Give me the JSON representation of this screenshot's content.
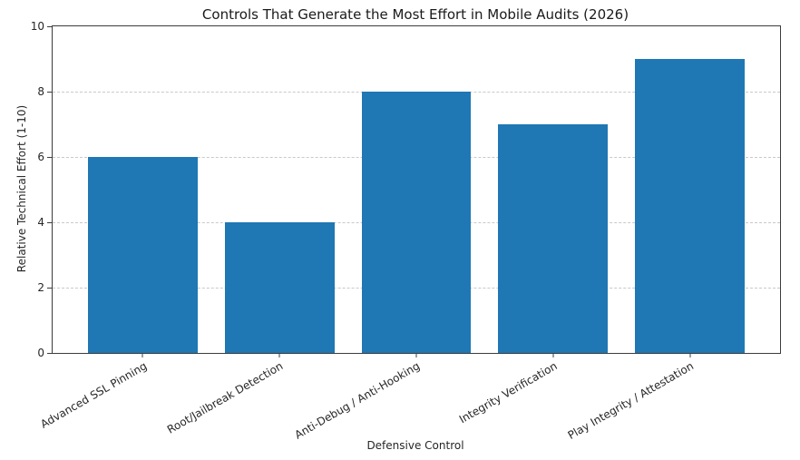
{
  "figure": {
    "background": "#ffffff"
  },
  "chart_data": {
    "type": "bar",
    "title": "Controls That Generate the Most Effort in Mobile Audits (2026)",
    "xlabel": "Defensive Control",
    "ylabel": "Relative Technical Effort (1-10)",
    "categories": [
      "Advanced SSL Pinning",
      "Root/Jailbreak Detection",
      "Anti-Debug / Anti-Hooking",
      "Integrity Verification",
      "Play Integrity / Attestation"
    ],
    "values": [
      6,
      4,
      8,
      7,
      9
    ],
    "ylim": [
      0,
      10
    ],
    "yticks": [
      0,
      2,
      4,
      6,
      8,
      10
    ],
    "xlim": [
      -0.66,
      4.66
    ],
    "bar_width": 0.8,
    "bar_color": "#1f77b4",
    "grid": {
      "axis": "y",
      "style": "dashed",
      "color": "#c9c9c9"
    },
    "x_tick_rotation_deg": 30,
    "spine_color": "#3c3c3c",
    "text_color": "#262626",
    "legend": null
  }
}
